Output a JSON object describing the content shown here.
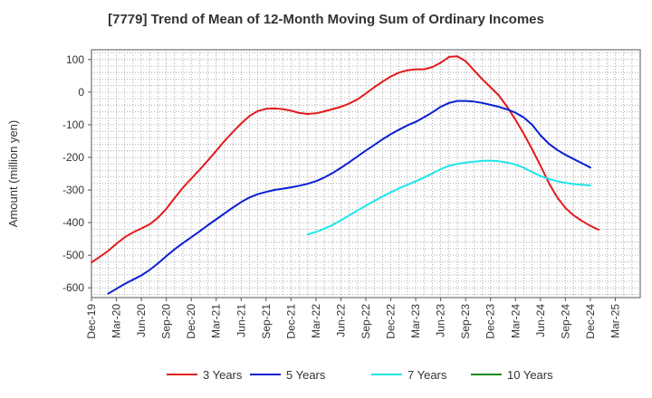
{
  "chart_data": {
    "type": "line",
    "title": "[7779]  Trend of Mean of 12-Month Moving Sum of Ordinary Incomes",
    "xlabel": "",
    "ylabel": "Amount (million yen)",
    "ylim": [
      -630,
      130
    ],
    "yticks": [
      100,
      0,
      -100,
      -200,
      -300,
      -400,
      -500,
      -600
    ],
    "xlim_months": [
      0,
      66
    ],
    "xticks": [
      {
        "m": 0,
        "label": "Dec-19"
      },
      {
        "m": 3,
        "label": "Mar-20"
      },
      {
        "m": 6,
        "label": "Jun-20"
      },
      {
        "m": 9,
        "label": "Sep-20"
      },
      {
        "m": 12,
        "label": "Dec-20"
      },
      {
        "m": 15,
        "label": "Mar-21"
      },
      {
        "m": 18,
        "label": "Jun-21"
      },
      {
        "m": 21,
        "label": "Sep-21"
      },
      {
        "m": 24,
        "label": "Dec-21"
      },
      {
        "m": 27,
        "label": "Mar-22"
      },
      {
        "m": 30,
        "label": "Jun-22"
      },
      {
        "m": 33,
        "label": "Sep-22"
      },
      {
        "m": 36,
        "label": "Dec-22"
      },
      {
        "m": 39,
        "label": "Mar-23"
      },
      {
        "m": 42,
        "label": "Jun-23"
      },
      {
        "m": 45,
        "label": "Sep-23"
      },
      {
        "m": 48,
        "label": "Dec-23"
      },
      {
        "m": 51,
        "label": "Mar-24"
      },
      {
        "m": 54,
        "label": "Jun-24"
      },
      {
        "m": 57,
        "label": "Sep-24"
      },
      {
        "m": 60,
        "label": "Dec-24"
      },
      {
        "m": 63,
        "label": "Mar-25"
      }
    ],
    "grid": true,
    "legend_position": "bottom",
    "series": [
      {
        "name": "3 Years",
        "color": "#e31a1c",
        "points": [
          [
            0,
            -522
          ],
          [
            1,
            -505
          ],
          [
            2,
            -487
          ],
          [
            3,
            -465
          ],
          [
            4,
            -445
          ],
          [
            5,
            -430
          ],
          [
            6,
            -418
          ],
          [
            7,
            -405
          ],
          [
            8,
            -385
          ],
          [
            9,
            -358
          ],
          [
            10,
            -325
          ],
          [
            11,
            -293
          ],
          [
            12,
            -265
          ],
          [
            13,
            -238
          ],
          [
            14,
            -210
          ],
          [
            15,
            -180
          ],
          [
            16,
            -150
          ],
          [
            17,
            -122
          ],
          [
            18,
            -96
          ],
          [
            19,
            -73
          ],
          [
            20,
            -58
          ],
          [
            21,
            -51
          ],
          [
            22,
            -50
          ],
          [
            23,
            -52
          ],
          [
            24,
            -57
          ],
          [
            25,
            -64
          ],
          [
            26,
            -67
          ],
          [
            27,
            -65
          ],
          [
            28,
            -59
          ],
          [
            29,
            -52
          ],
          [
            30,
            -45
          ],
          [
            31,
            -35
          ],
          [
            32,
            -22
          ],
          [
            33,
            -4
          ],
          [
            34,
            15
          ],
          [
            35,
            32
          ],
          [
            36,
            48
          ],
          [
            37,
            60
          ],
          [
            38,
            67
          ],
          [
            39,
            70
          ],
          [
            40,
            70
          ],
          [
            41,
            77
          ],
          [
            42,
            90
          ],
          [
            43,
            108
          ],
          [
            44,
            110
          ],
          [
            45,
            95
          ],
          [
            46,
            67
          ],
          [
            47,
            40
          ],
          [
            48,
            15
          ],
          [
            49,
            -10
          ],
          [
            50,
            -45
          ],
          [
            51,
            -85
          ],
          [
            52,
            -128
          ],
          [
            53,
            -175
          ],
          [
            54,
            -225
          ],
          [
            55,
            -278
          ],
          [
            56,
            -322
          ],
          [
            57,
            -355
          ],
          [
            58,
            -378
          ],
          [
            59,
            -395
          ],
          [
            60,
            -410
          ],
          [
            61,
            -422
          ]
        ]
      },
      {
        "name": "5 Years",
        "color": "#0a1fd1",
        "points": [
          [
            2,
            -618
          ],
          [
            3,
            -603
          ],
          [
            4,
            -588
          ],
          [
            5,
            -575
          ],
          [
            6,
            -562
          ],
          [
            7,
            -545
          ],
          [
            8,
            -525
          ],
          [
            9,
            -503
          ],
          [
            10,
            -482
          ],
          [
            11,
            -463
          ],
          [
            12,
            -445
          ],
          [
            13,
            -427
          ],
          [
            14,
            -408
          ],
          [
            15,
            -390
          ],
          [
            16,
            -372
          ],
          [
            17,
            -354
          ],
          [
            18,
            -337
          ],
          [
            19,
            -323
          ],
          [
            20,
            -313
          ],
          [
            21,
            -306
          ],
          [
            22,
            -300
          ],
          [
            23,
            -296
          ],
          [
            24,
            -292
          ],
          [
            25,
            -287
          ],
          [
            26,
            -281
          ],
          [
            27,
            -273
          ],
          [
            28,
            -262
          ],
          [
            29,
            -248
          ],
          [
            30,
            -232
          ],
          [
            31,
            -215
          ],
          [
            32,
            -197
          ],
          [
            33,
            -179
          ],
          [
            34,
            -162
          ],
          [
            35,
            -145
          ],
          [
            36,
            -129
          ],
          [
            37,
            -115
          ],
          [
            38,
            -102
          ],
          [
            39,
            -91
          ],
          [
            40,
            -77
          ],
          [
            41,
            -62
          ],
          [
            42,
            -45
          ],
          [
            43,
            -33
          ],
          [
            44,
            -27
          ],
          [
            45,
            -27
          ],
          [
            46,
            -29
          ],
          [
            47,
            -33
          ],
          [
            48,
            -39
          ],
          [
            49,
            -45
          ],
          [
            50,
            -53
          ],
          [
            51,
            -63
          ],
          [
            52,
            -78
          ],
          [
            53,
            -100
          ],
          [
            54,
            -132
          ],
          [
            55,
            -158
          ],
          [
            56,
            -177
          ],
          [
            57,
            -192
          ],
          [
            58,
            -205
          ],
          [
            59,
            -218
          ],
          [
            60,
            -231
          ]
        ]
      },
      {
        "name": "7 Years",
        "color": "#1fe5ea",
        "points": [
          [
            26,
            -436
          ],
          [
            27,
            -429
          ],
          [
            28,
            -419
          ],
          [
            29,
            -407
          ],
          [
            30,
            -393
          ],
          [
            31,
            -378
          ],
          [
            32,
            -363
          ],
          [
            33,
            -348
          ],
          [
            34,
            -334
          ],
          [
            35,
            -320
          ],
          [
            36,
            -307
          ],
          [
            37,
            -295
          ],
          [
            38,
            -284
          ],
          [
            39,
            -273
          ],
          [
            40,
            -262
          ],
          [
            41,
            -249
          ],
          [
            42,
            -236
          ],
          [
            43,
            -226
          ],
          [
            44,
            -220
          ],
          [
            45,
            -216
          ],
          [
            46,
            -213
          ],
          [
            47,
            -211
          ],
          [
            48,
            -210
          ],
          [
            49,
            -212
          ],
          [
            50,
            -216
          ],
          [
            51,
            -222
          ],
          [
            52,
            -232
          ],
          [
            53,
            -245
          ],
          [
            54,
            -257
          ],
          [
            55,
            -266
          ],
          [
            56,
            -273
          ],
          [
            57,
            -278
          ],
          [
            58,
            -282
          ],
          [
            59,
            -284
          ],
          [
            60,
            -286
          ]
        ]
      },
      {
        "name": "10 Years",
        "color": "#1a8c1a",
        "points": []
      }
    ]
  }
}
